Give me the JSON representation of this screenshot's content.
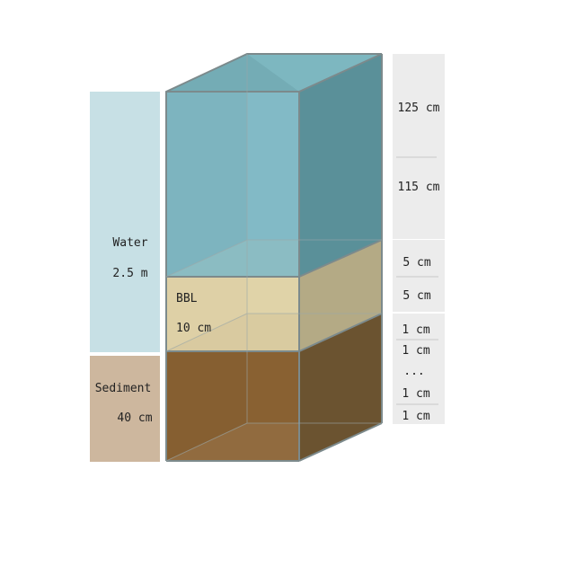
{
  "left_labels": {
    "water": {
      "name": "Water",
      "depth": "2.5 m"
    },
    "sediment": {
      "name": "Sediment",
      "depth": "40 cm"
    }
  },
  "box_labels": {
    "bbl": {
      "name": "BBL",
      "depth": "10 cm"
    }
  },
  "right_scale": {
    "water_cells": [
      "125 cm",
      "115 cm"
    ],
    "bbl_cells": [
      "5 cm",
      "5 cm"
    ],
    "sediment_cells": [
      "1 cm",
      "1 cm",
      "...",
      "1 cm",
      "1 cm"
    ]
  },
  "colors": {
    "water_panel": "#c7e0e5",
    "sediment_panel": "#cdb79e",
    "scale_panel": "#ececec",
    "water_front": "#7fb6c1",
    "water_side": "#5a9099",
    "water_top": "#8dc8d2",
    "bbl_front": "#dfd2a8",
    "bbl_side": "#b4aa85",
    "sed_front": "#875f32",
    "sed_side": "#6b5330",
    "sed_bottom": "#b89b76"
  }
}
